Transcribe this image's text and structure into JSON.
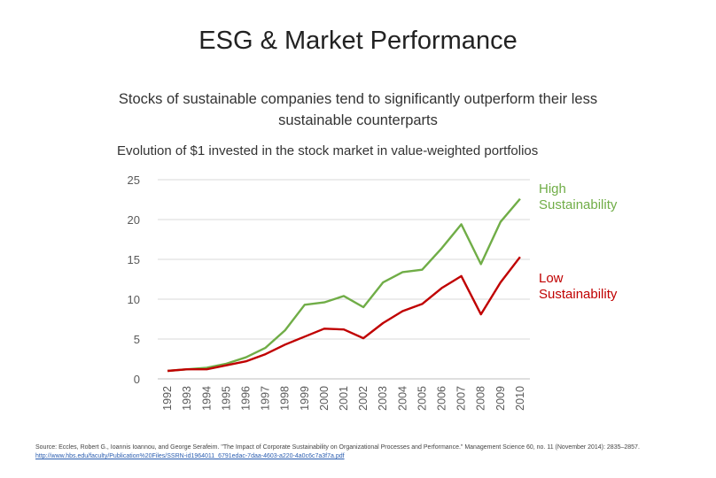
{
  "header": {
    "title": "ESG & Market Performance",
    "subtitle": "Stocks of sustainable companies tend to significantly outperform their less sustainable counterparts"
  },
  "chart_data": {
    "type": "line",
    "title": "Evolution of $1 invested in the stock market in value-weighted portfolios",
    "x": [
      "1992",
      "1993",
      "1994",
      "1995",
      "1996",
      "1997",
      "1998",
      "1999",
      "2000",
      "2001",
      "2002",
      "2003",
      "2004",
      "2005",
      "2006",
      "2007",
      "2008",
      "2009",
      "2010"
    ],
    "yticks": [
      0,
      5,
      10,
      15,
      20,
      25
    ],
    "ylim": [
      0,
      25
    ],
    "grid": true,
    "series": [
      {
        "name": "High Sustainability",
        "label_lines": [
          "High",
          "Sustainability"
        ],
        "color": "#70ad47",
        "values": [
          1.0,
          1.2,
          1.4,
          1.9,
          2.7,
          3.9,
          6.1,
          9.3,
          9.6,
          10.4,
          9.0,
          12.1,
          13.4,
          13.7,
          16.4,
          19.4,
          14.4,
          19.7,
          22.6
        ]
      },
      {
        "name": "Low Sustainability",
        "label_lines": [
          "Low",
          "Sustainability"
        ],
        "color": "#c00000",
        "values": [
          1.0,
          1.2,
          1.2,
          1.7,
          2.2,
          3.1,
          4.3,
          5.3,
          6.3,
          6.2,
          5.1,
          7.0,
          8.5,
          9.4,
          11.4,
          12.9,
          8.1,
          12.1,
          15.3
        ]
      }
    ]
  },
  "source": {
    "text": "Source:  Eccles, Robert G., Ioannis Ioannou, and George Serafeim. \"The Impact of Corporate Sustainability on Organizational Processes and Performance.\" Management Science 60, no. 11 (November 2014): 2835–2857.",
    "link": "http://www.hbs.edu/faculty/Publication%20Files/SSRN-id1964011_6791edac-7daa-4603-a220-4a0c6c7a3f7a.pdf"
  }
}
